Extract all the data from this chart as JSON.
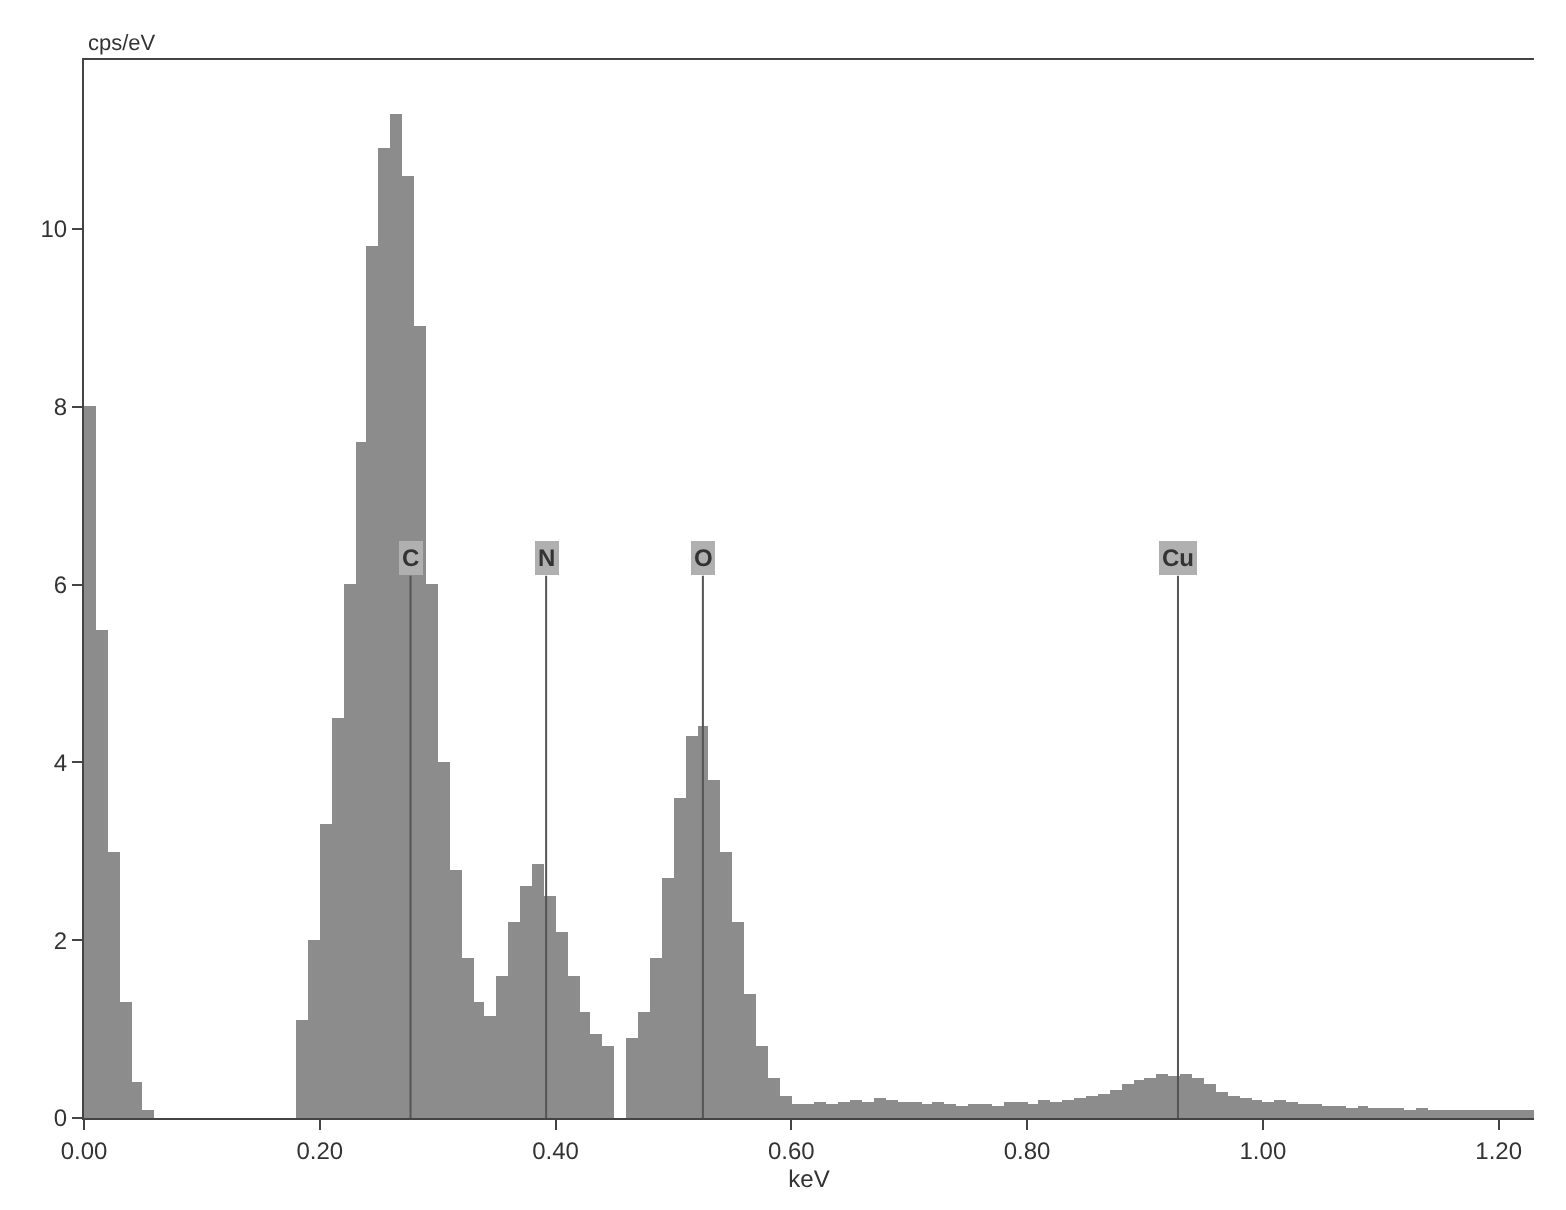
{
  "chart_data": {
    "type": "histogram",
    "xlabel": "keV",
    "ylabel": "cps/eV",
    "bins": [
      0,
      0.01,
      0.02,
      0.03,
      0.04,
      0.05,
      0.06,
      0.07,
      0.08,
      0.09,
      0.1,
      0.11,
      0.12,
      0.13,
      0.14,
      0.15,
      0.16,
      0.17,
      0.18,
      0.19,
      0.2,
      0.21,
      0.22,
      0.23,
      0.24,
      0.25,
      0.26,
      0.27,
      0.28,
      0.29,
      0.3,
      0.31,
      0.32,
      0.33,
      0.34,
      0.35,
      0.36,
      0.37,
      0.38,
      0.39,
      0.4,
      0.41,
      0.42,
      0.43,
      0.44,
      0.45,
      0.46,
      0.47,
      0.48,
      0.49,
      0.5,
      0.51,
      0.52,
      0.53,
      0.54,
      0.55,
      0.56,
      0.57,
      0.58,
      0.59,
      0.6,
      0.61,
      0.62,
      0.63,
      0.64,
      0.65,
      0.66,
      0.67,
      0.68,
      0.69,
      0.7,
      0.71,
      0.72,
      0.73,
      0.74,
      0.75,
      0.76,
      0.77,
      0.78,
      0.79,
      0.8,
      0.81,
      0.82,
      0.83,
      0.84,
      0.85,
      0.86,
      0.87,
      0.88,
      0.89,
      0.9,
      0.91,
      0.92,
      0.93,
      0.94,
      0.95,
      0.96,
      0.97,
      0.98,
      0.99,
      1,
      1.01,
      1.02,
      1.03,
      1.04,
      1.05,
      1.06,
      1.07,
      1.08,
      1.09,
      1.1,
      1.11,
      1.12,
      1.13,
      1.14,
      1.15,
      1.16,
      1.17,
      1.18,
      1.19,
      1.2,
      1.21,
      1.22,
      1.23
    ],
    "values": [
      8.0,
      5.5,
      3.0,
      1.3,
      0.4,
      0.1,
      0,
      0,
      0,
      0,
      0,
      0,
      0,
      0,
      0,
      0,
      0,
      0,
      1.1,
      2.0,
      3.3,
      4.5,
      6.0,
      7.6,
      9.8,
      10.9,
      11.3,
      10.6,
      8.9,
      6.0,
      4.0,
      2.8,
      1.8,
      1.3,
      1.15,
      1.6,
      2.2,
      2.6,
      2.85,
      2.5,
      2.1,
      1.6,
      1.2,
      0.95,
      0.8,
      0,
      0.9,
      1.2,
      1.8,
      2.7,
      3.6,
      4.3,
      4.4,
      3.8,
      3.0,
      2.2,
      1.4,
      0.8,
      0.45,
      0.25,
      0.15,
      0.15,
      0.18,
      0.15,
      0.17,
      0.2,
      0.18,
      0.22,
      0.2,
      0.18,
      0.17,
      0.15,
      0.17,
      0.15,
      0.14,
      0.16,
      0.15,
      0.14,
      0.17,
      0.18,
      0.16,
      0.2,
      0.18,
      0.2,
      0.22,
      0.25,
      0.28,
      0.32,
      0.38,
      0.42,
      0.45,
      0.5,
      0.48,
      0.5,
      0.45,
      0.38,
      0.3,
      0.25,
      0.22,
      0.2,
      0.18,
      0.2,
      0.17,
      0.15,
      0.16,
      0.14,
      0.13,
      0.12,
      0.13,
      0.12,
      0.11,
      0.12,
      0.1,
      0.11,
      0.1,
      0.1,
      0.1,
      0.09,
      0.1,
      0.1,
      0.09,
      0.1,
      0.09
    ],
    "color": "#8c8c8c",
    "xlim": [
      0,
      1.23
    ],
    "xticks": [
      {
        "value": 0,
        "label": "0.00"
      },
      {
        "value": 0.2,
        "label": "0.20"
      },
      {
        "value": 0.4,
        "label": "0.40"
      },
      {
        "value": 0.6,
        "label": "0.60"
      },
      {
        "value": 0.8,
        "label": "0.80"
      },
      {
        "value": 1,
        "label": "1.00"
      },
      {
        "value": 1.2,
        "label": "1.20"
      }
    ],
    "ylim": [
      0,
      11.9
    ],
    "yticks": [
      0,
      2,
      4,
      6,
      8,
      10
    ],
    "ref_lines": [
      {
        "axis": "x",
        "value": 0.277,
        "label": "C",
        "color": "#555555"
      },
      {
        "axis": "x",
        "value": 0.392,
        "label": "N",
        "color": "#555555"
      },
      {
        "axis": "x",
        "value": 0.525,
        "label": "O",
        "color": "#555555"
      },
      {
        "axis": "x",
        "value": 0.928,
        "label": "Cu",
        "color": "#555555"
      }
    ],
    "grid": false
  }
}
